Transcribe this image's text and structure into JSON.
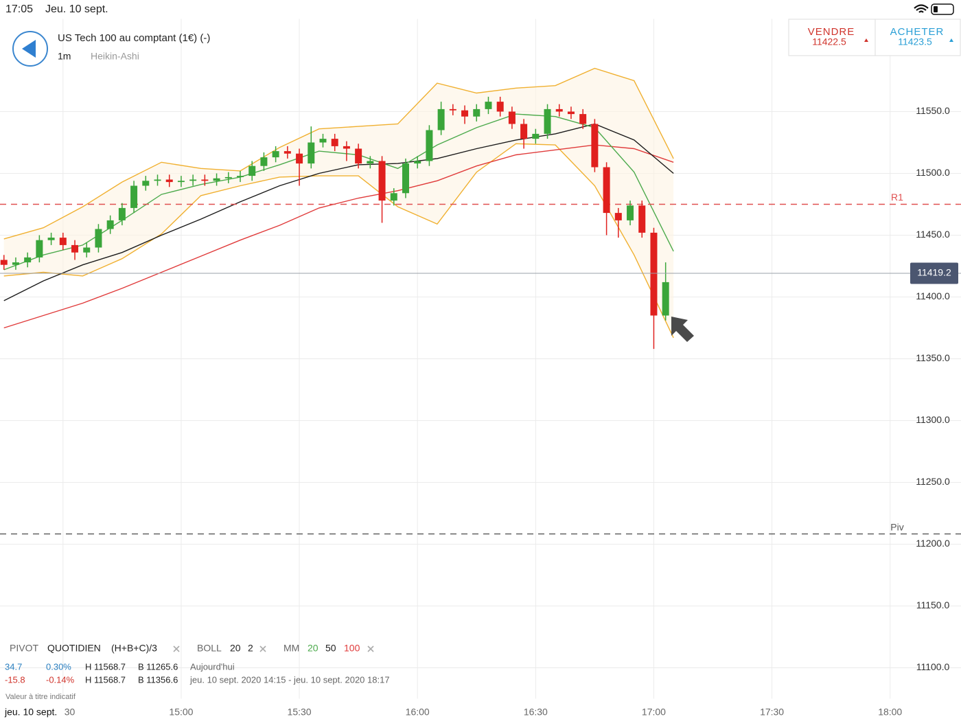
{
  "status_bar": {
    "time": "17:05",
    "date": "Jeu. 10 sept."
  },
  "header": {
    "title": "US Tech 100 au comptant (1€) (-)",
    "interval": "1m",
    "chart_style": "Heikin-Ashi"
  },
  "quote": {
    "sell_label": "VENDRE",
    "sell_price": "11422.5",
    "buy_label": "ACHETER",
    "buy_price": "11423.5"
  },
  "chart_data": {
    "type": "candlestick",
    "x": [
      "14:15",
      "14:18",
      "14:21",
      "14:24",
      "14:27",
      "14:30",
      "14:33",
      "14:36",
      "14:39",
      "14:42",
      "14:45",
      "14:48",
      "14:51",
      "14:54",
      "14:57",
      "15:00",
      "15:03",
      "15:06",
      "15:09",
      "15:12",
      "15:15",
      "15:18",
      "15:21",
      "15:24",
      "15:27",
      "15:30",
      "15:33",
      "15:36",
      "15:39",
      "15:42",
      "15:45",
      "15:48",
      "15:51",
      "15:54",
      "15:57",
      "16:00",
      "16:03",
      "16:06",
      "16:09",
      "16:12",
      "16:15",
      "16:18",
      "16:21",
      "16:24",
      "16:27",
      "16:30",
      "16:33",
      "16:36",
      "16:39",
      "16:42",
      "16:45",
      "16:48",
      "16:51",
      "16:54",
      "16:57",
      "17:00",
      "17:03"
    ],
    "open": [
      11430,
      11426,
      11428,
      11432,
      11446,
      11448,
      11442,
      11436,
      11440,
      11455,
      11462,
      11472,
      11490,
      11494,
      11495,
      11493,
      11494,
      11495,
      11494,
      11496,
      11497,
      11498,
      11506,
      11513,
      11518,
      11516,
      11508,
      11525,
      11528,
      11522,
      11520,
      11508,
      11510,
      11478,
      11484,
      11508,
      11510,
      11535,
      11552,
      11551,
      11546,
      11552,
      11558,
      11550,
      11540,
      11528,
      11532,
      11552,
      11550,
      11548,
      11540,
      11505,
      11468,
      11462,
      11474,
      11452,
      11385
    ],
    "high": [
      11434,
      11432,
      11436,
      11450,
      11452,
      11452,
      11446,
      11444,
      11459,
      11466,
      11476,
      11494,
      11498,
      11499,
      11499,
      11498,
      11499,
      11499,
      11500,
      11501,
      11502,
      11510,
      11517,
      11522,
      11522,
      11520,
      11538,
      11532,
      11532,
      11526,
      11524,
      11514,
      11514,
      11488,
      11512,
      11514,
      11539,
      11558,
      11556,
      11555,
      11556,
      11562,
      11562,
      11554,
      11544,
      11536,
      11556,
      11556,
      11554,
      11552,
      11544,
      11509,
      11472,
      11478,
      11478,
      11456,
      11428
    ],
    "low": [
      11422,
      11422,
      11424,
      11428,
      11442,
      11438,
      11430,
      11432,
      11436,
      11451,
      11458,
      11468,
      11486,
      11490,
      11489,
      11489,
      11490,
      11490,
      11490,
      11492,
      11493,
      11494,
      11502,
      11509,
      11512,
      11490,
      11504,
      11521,
      11518,
      11510,
      11504,
      11504,
      11460,
      11474,
      11480,
      11504,
      11506,
      11531,
      11547,
      11540,
      11542,
      11548,
      11546,
      11536,
      11520,
      11524,
      11528,
      11546,
      11544,
      11536,
      11501,
      11450,
      11448,
      11458,
      11448,
      11358,
      11381
    ],
    "close": [
      11426,
      11428,
      11432,
      11446,
      11448,
      11442,
      11436,
      11440,
      11455,
      11462,
      11472,
      11490,
      11494,
      11495,
      11493,
      11494,
      11495,
      11494,
      11496,
      11497,
      11498,
      11506,
      11513,
      11518,
      11516,
      11508,
      11525,
      11528,
      11522,
      11520,
      11508,
      11510,
      11478,
      11484,
      11508,
      11510,
      11535,
      11552,
      11551,
      11546,
      11552,
      11558,
      11550,
      11540,
      11528,
      11532,
      11552,
      11550,
      11548,
      11540,
      11505,
      11468,
      11462,
      11474,
      11452,
      11385,
      11412
    ],
    "up_color": "#3aa53a",
    "down_color": "#e0201e",
    "indicators": {
      "x": [
        "14:15",
        "14:25",
        "14:35",
        "14:45",
        "14:55",
        "15:05",
        "15:15",
        "15:25",
        "15:35",
        "15:45",
        "15:55",
        "16:05",
        "16:15",
        "16:25",
        "16:35",
        "16:45",
        "16:55",
        "17:05"
      ],
      "ma20": {
        "color": "#4caa4c",
        "values": [
          11422,
          11434,
          11442,
          11462,
          11483,
          11491,
          11497,
          11507,
          11518,
          11515,
          11504,
          11523,
          11537,
          11548,
          11546,
          11537,
          11501,
          11437
        ]
      },
      "ma50": {
        "color": "#1a1a1a",
        "values": [
          11397,
          11413,
          11426,
          11436,
          11450,
          11463,
          11477,
          11490,
          11500,
          11507,
          11508,
          11512,
          11520,
          11527,
          11532,
          11540,
          11527,
          11500
        ]
      },
      "ma100": {
        "color": "#e03a3a",
        "values": [
          11375,
          11385,
          11395,
          11407,
          11420,
          11433,
          11446,
          11458,
          11472,
          11480,
          11486,
          11494,
          11506,
          11515,
          11519,
          11523,
          11520,
          11509
        ]
      },
      "boll_upper": {
        "color": "#f0b030",
        "values": [
          11447,
          11456,
          11473,
          11493,
          11509,
          11504,
          11502,
          11521,
          11536,
          11538,
          11540,
          11573,
          11565,
          11569,
          11571,
          11585,
          11575,
          11512
        ]
      },
      "boll_lower": {
        "color": "#f0b030",
        "values": [
          11417,
          11420,
          11417,
          11431,
          11451,
          11482,
          11490,
          11497,
          11498,
          11498,
          11473,
          11459,
          11501,
          11524,
          11523,
          11490,
          11434,
          11367
        ]
      }
    },
    "xlim": [
      "14:14",
      "18:18"
    ],
    "xticks": [
      "14:30",
      "15:00",
      "15:30",
      "16:00",
      "16:30",
      "17:00",
      "17:30",
      "18:00"
    ],
    "ylim": [
      11075,
      11625
    ],
    "yticks": [
      {
        "value": 11100,
        "label": "11100.0"
      },
      {
        "value": 11150,
        "label": "11150.0"
      },
      {
        "value": 11200,
        "label": "11200.0"
      },
      {
        "value": 11250,
        "label": "11250.0"
      },
      {
        "value": 11300,
        "label": "11300.0"
      },
      {
        "value": 11350,
        "label": "11350.0"
      },
      {
        "value": 11400,
        "label": "11400.0"
      },
      {
        "value": 11450,
        "label": "11450.0"
      },
      {
        "value": 11500,
        "label": "11500.0"
      },
      {
        "value": 11550,
        "label": "11550.0"
      }
    ],
    "grid": true,
    "levels": [
      {
        "label": "R1",
        "value": 11475,
        "color": "#e05050"
      },
      {
        "label": "Piv",
        "value": 11208.3,
        "color": "#555555"
      }
    ],
    "last_price": 11419.2
  },
  "legend": {
    "pivot": "PIVOT",
    "period": "QUOTIDIEN",
    "formula": "(H+B+C)/3",
    "boll": "BOLL",
    "boll_period": "20",
    "boll_dev": "2",
    "mm": "MM",
    "mm1": "20",
    "mm2": "50",
    "mm3": "100"
  },
  "stats": [
    {
      "change": "34.7",
      "pct": "0.30%",
      "high": "H 11568.7",
      "low": "B 11265.6",
      "range": "Aujourd'hui"
    },
    {
      "change": "-15.8",
      "pct": "-0.14%",
      "high": "H 11568.7",
      "low": "B 11356.6",
      "range": "jeu. 10 sept. 2020 14:15 - jeu. 10 sept. 2020 18:17"
    }
  ],
  "disclaimer": "Valeur à titre indicatif",
  "date_label": "jeu. 10 sept."
}
